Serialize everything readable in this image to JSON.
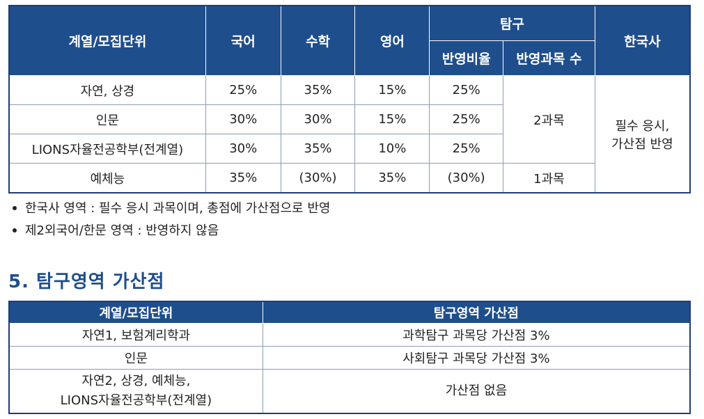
{
  "table1": {
    "headers": {
      "unit": "계열/모집단위",
      "korean": "국어",
      "math": "수학",
      "english": "영어",
      "inquiry": "탐구",
      "inquiry_ratio": "반영비율",
      "inquiry_count": "반영과목 수",
      "history": "한국사"
    },
    "rows": [
      {
        "unit": "자연, 상경",
        "korean": "25%",
        "math": "35%",
        "english": "15%",
        "inquiry_ratio": "25%"
      },
      {
        "unit": "인문",
        "korean": "30%",
        "math": "30%",
        "english": "15%",
        "inquiry_ratio": "25%"
      },
      {
        "unit": "LIONS자율전공학부(전계열)",
        "korean": "30%",
        "math": "35%",
        "english": "10%",
        "inquiry_ratio": "25%"
      },
      {
        "unit": "예체능",
        "korean": "35%",
        "math": "(30%)",
        "english": "35%",
        "inquiry_ratio": "(30%)"
      }
    ],
    "count_2": "2과목",
    "count_1": "1과목",
    "history_line1": "필수 응시,",
    "history_line2": "가산점 반영"
  },
  "notes": [
    "한국사 영역 : 필수 응시 과목이며, 총점에 가산점으로 반영",
    "제2외국어/한문 영역 : 반영하지 않음"
  ],
  "section_title": "5. 탐구영역 가산점",
  "table2": {
    "headers": {
      "unit": "계열/모집단위",
      "bonus": "탐구영역 가산점"
    },
    "rows": [
      {
        "unit": "자연1, 보험계리학과",
        "bonus": "과학탐구 과목당 가산점 3%"
      },
      {
        "unit": "인문",
        "bonus": "사회탐구 과목당 가산점 3%"
      }
    ],
    "last_unit_line1": "자연2, 상경, 예체능,",
    "last_unit_line2": "LIONS자율전공학부(전계열)",
    "last_bonus": "가산점 없음"
  }
}
